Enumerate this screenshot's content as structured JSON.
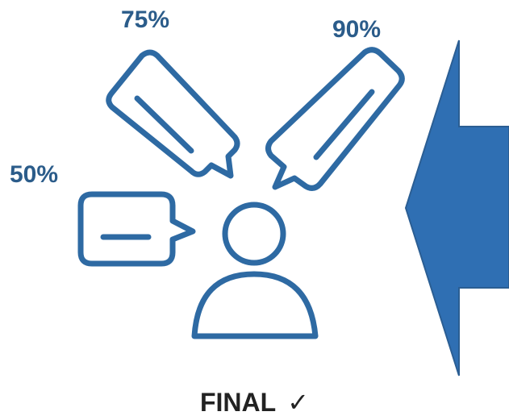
{
  "colors": {
    "outline": "#2e6aa3",
    "arrow_fill": "#2f6fb3",
    "percent_text": "#2b5c8a",
    "final_text": "#222222"
  },
  "bubbles": [
    {
      "id": "bubble-75",
      "percent": "75%"
    },
    {
      "id": "bubble-90",
      "percent": "90%"
    },
    {
      "id": "bubble-50",
      "percent": "50%"
    }
  ],
  "person": {
    "icon": "person-icon"
  },
  "arrow": {
    "icon": "left-arrow",
    "direction": "left"
  },
  "footer": {
    "label": "FINAL",
    "check": "✓"
  }
}
